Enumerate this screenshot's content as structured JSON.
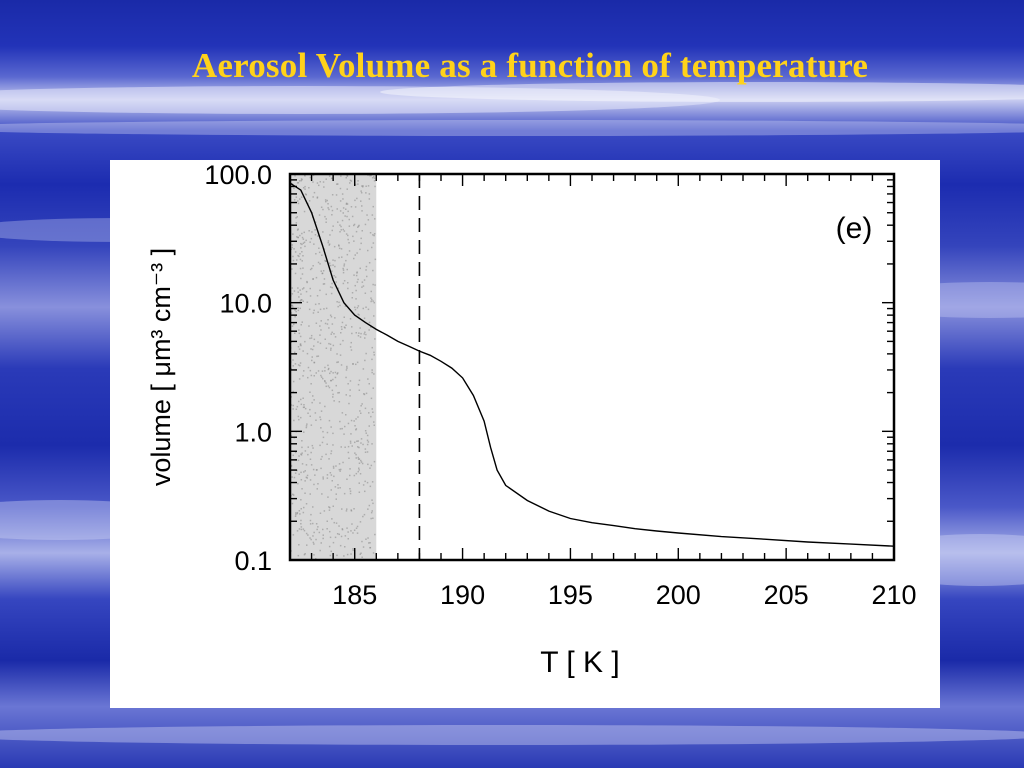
{
  "slide": {
    "title": "Aerosol Volume as a function of temperature"
  },
  "colors": {
    "title": "#ffd21a",
    "background": "#2233b8",
    "panel": "#ffffff",
    "line": "#000000",
    "shaded_region": "#d8d8d8"
  },
  "chart_data": {
    "type": "line",
    "panel_label": "(e)",
    "xlabel": "T [ K ]",
    "ylabel": "volume [ μm³ cm⁻³ ]",
    "xlim": [
      182,
      210
    ],
    "ylim": [
      0.1,
      100
    ],
    "yscale": "log",
    "x_ticks": [
      "185",
      "190",
      "195",
      "200",
      "205",
      "210"
    ],
    "x_tick_values": [
      185,
      190,
      195,
      200,
      205,
      210
    ],
    "y_ticks": [
      "0.1",
      "1.0",
      "10.0",
      "100.0"
    ],
    "y_tick_values": [
      0.1,
      1,
      10,
      100
    ],
    "shaded_region": [
      182,
      186
    ],
    "vertical_marker": 188,
    "series": [
      {
        "x": [
          182,
          182.5,
          183,
          183.5,
          184,
          184.5,
          185,
          185.5,
          186,
          186.5,
          187,
          187.5,
          188,
          188.5,
          189,
          189.5,
          190,
          190.5,
          191,
          191.3,
          191.6,
          192,
          193,
          194,
          195,
          196,
          197,
          198,
          199,
          200,
          202,
          204,
          206,
          208,
          210
        ],
        "y": [
          85,
          75,
          50,
          28,
          15,
          10,
          8,
          7,
          6.2,
          5.6,
          5.0,
          4.6,
          4.2,
          3.9,
          3.5,
          3.1,
          2.6,
          1.9,
          1.2,
          0.75,
          0.5,
          0.38,
          0.29,
          0.24,
          0.21,
          0.195,
          0.185,
          0.175,
          0.168,
          0.162,
          0.152,
          0.145,
          0.138,
          0.133,
          0.128
        ]
      }
    ]
  }
}
